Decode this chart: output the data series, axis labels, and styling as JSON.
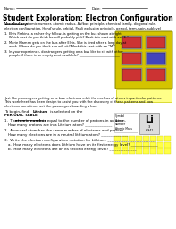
{
  "title": "Student Exploration: Electron Configuration",
  "name_label": "Name:",
  "date_label": "Date:",
  "vocab_title": "Vocabulary:",
  "vocab_text": "atomic number, atomic radius, Aufbau principle, chemical family, diagonal rule,\nelectron configuration, Hund’s rule, orbital, Pauli exclusion principle, period, term, spin, sublevel",
  "para_lines": [
    "Just like passengers getting on a bus, electrons orbit the nucleus of atoms in particular patterns.",
    "This worksheet has been design to assist you with the discovery of these patterns and how",
    "electrons sometimes act like passengers boarding a bus."
  ],
  "bus_seat_colors": [
    [
      "#cc3333",
      "#cc3333"
    ],
    [
      "#cc3333",
      "#4444bb"
    ],
    [
      "#cc3333",
      "#cc3333"
    ]
  ],
  "bg_color": "#ffffff",
  "text_color": "#000000",
  "title_fontsize": 5.5,
  "body_fontsize": 2.9,
  "small_fontsize": 2.6
}
